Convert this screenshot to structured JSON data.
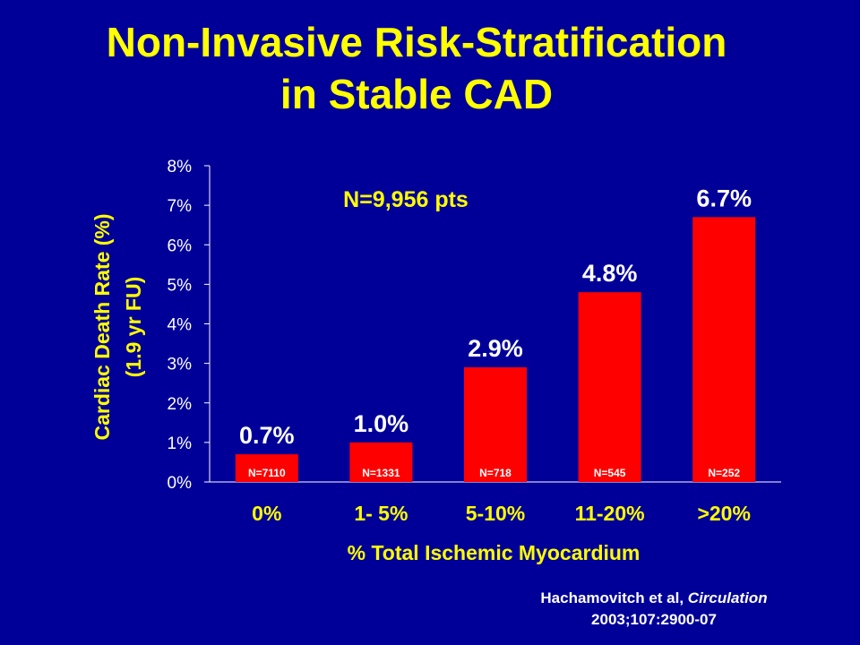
{
  "slide": {
    "title_line1": "Non-Invasive Risk-Stratification",
    "title_line2": "in Stable CAD",
    "citation_line1_prefix": "Hachamovitch et al, ",
    "citation_line1_journal": "Circulation",
    "citation_line2": "2003;107:2900-07"
  },
  "colors": {
    "background": "#000099",
    "title": "#ffff00",
    "bar": "#ff0000",
    "text": "#ffffff",
    "axis": "#ffffff"
  },
  "chart_data": {
    "type": "bar",
    "categories": [
      "0%",
      "1- 5%",
      "5-10%",
      "11-20%",
      ">20%"
    ],
    "values": [
      0.7,
      1.0,
      2.9,
      4.8,
      6.7
    ],
    "data_labels": [
      "0.7%",
      "1.0%",
      "2.9%",
      "4.8%",
      "6.7%"
    ],
    "bar_annotations": [
      "N=7110",
      "N=1331",
      "N=718",
      "N=545",
      "N=252"
    ],
    "annotation": "N=9,956 pts",
    "xlabel": "% Total Ischemic Myocardium",
    "ylabel_line1": "Cardiac Death Rate (%)",
    "ylabel_line2": "(1.9 yr FU)",
    "ylim": [
      0,
      8
    ],
    "yticks": [
      "0%",
      "1%",
      "2%",
      "3%",
      "4%",
      "5%",
      "6%",
      "7%",
      "8%"
    ],
    "grid": false,
    "legend": "none"
  }
}
